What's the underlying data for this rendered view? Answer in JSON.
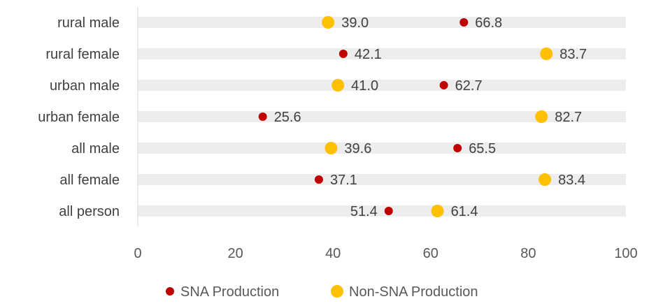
{
  "chart_data": {
    "type": "scatter",
    "title": "",
    "xlabel": "",
    "ylabel": "",
    "xlim": [
      0,
      100
    ],
    "xticks": [
      0,
      20,
      40,
      60,
      80,
      100
    ],
    "categories": [
      "rural male",
      "rural female",
      "urban male",
      "urban female",
      "all male",
      "all female",
      "all person"
    ],
    "series": [
      {
        "name": "SNA Production",
        "color": "#C00000",
        "values": [
          66.8,
          42.1,
          62.7,
          25.6,
          65.5,
          37.1,
          51.4
        ],
        "labels": [
          "66.8",
          "42.1",
          "62.7",
          "25.6",
          "65.5",
          "37.1",
          "51.4"
        ]
      },
      {
        "name": "Non-SNA Production",
        "color": "#FFC000",
        "values": [
          39.0,
          83.7,
          41.0,
          82.7,
          39.6,
          83.4,
          61.4
        ],
        "labels": [
          "39.0",
          "83.7",
          "41.0",
          "82.7",
          "39.6",
          "83.4",
          "61.4"
        ]
      }
    ],
    "legend": "bottom",
    "band_color": "#EDEDED"
  }
}
